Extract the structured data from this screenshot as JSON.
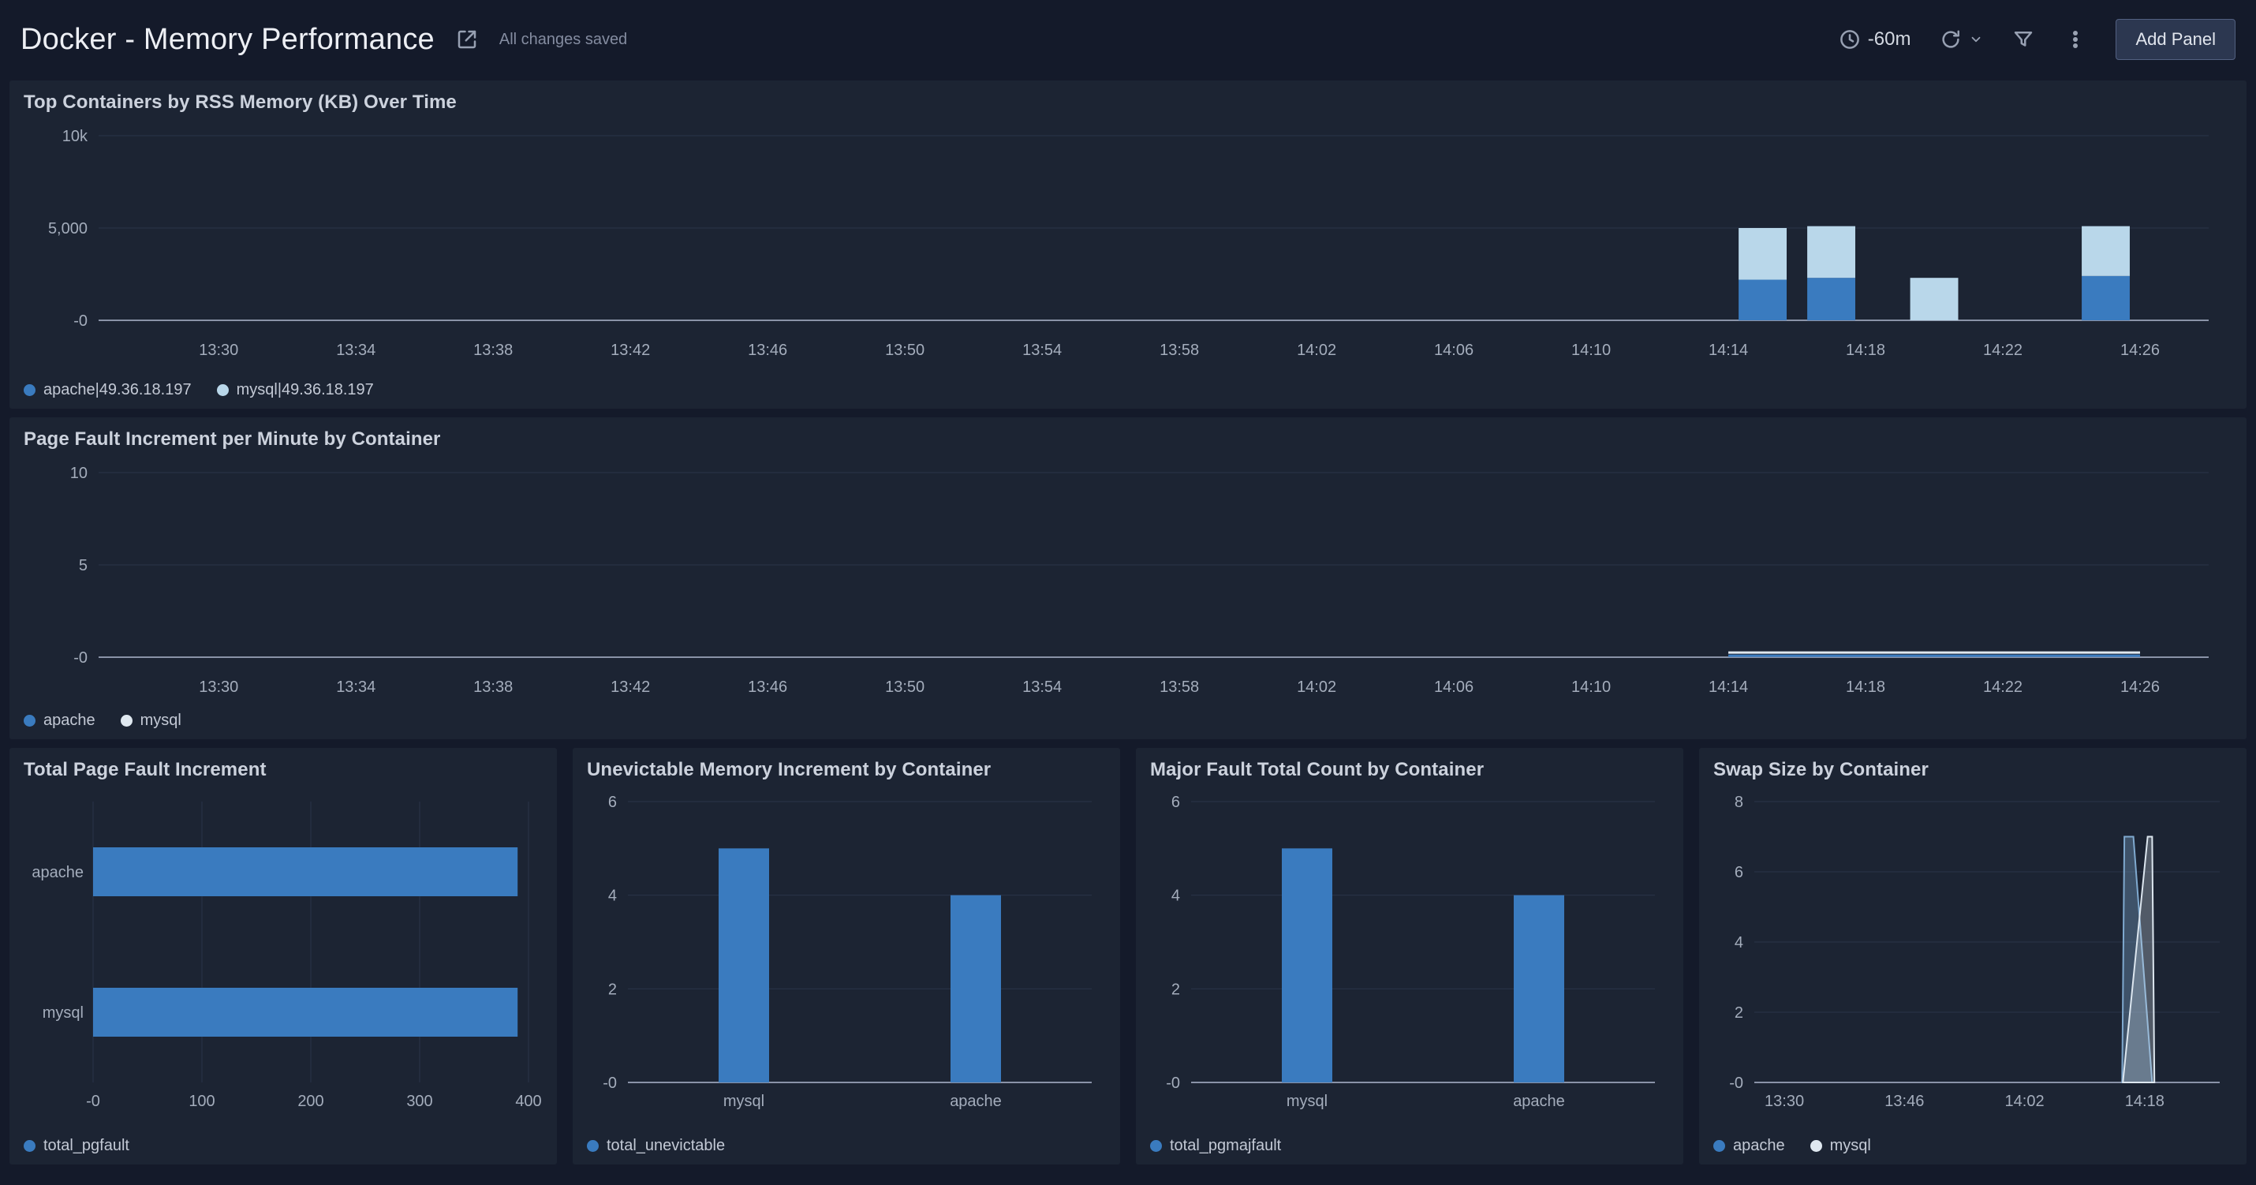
{
  "header": {
    "title": "Docker - Memory Performance",
    "save_status": "All changes saved",
    "time_range": "-60m",
    "add_panel_label": "Add Panel"
  },
  "panels": {
    "rss": {
      "title": "Top Containers by RSS Memory (KB) Over Time"
    },
    "pagefault": {
      "title": "Page Fault Increment per Minute by Container"
    },
    "total_pgfault": {
      "title": "Total Page Fault Increment"
    },
    "unevictable": {
      "title": "Unevictable Memory Increment by Container"
    },
    "pgmajfault": {
      "title": "Major Fault Total Count by Container"
    },
    "swap": {
      "title": "Swap Size by Container"
    }
  },
  "colors": {
    "page_bg": "#141a2a",
    "panel_bg": "#1c2433",
    "series_dark_blue": "#3a7bbf",
    "series_light_blue": "#b9d7ea",
    "series_white": "#dfe8f0"
  },
  "chart_data": [
    {
      "panel": "rss",
      "type": "bar",
      "stacked": true,
      "x_domain": [
        -3.5,
        58
      ],
      "x_ticks": [
        {
          "m": 0,
          "label": "13:30"
        },
        {
          "m": 4,
          "label": "13:34"
        },
        {
          "m": 8,
          "label": "13:38"
        },
        {
          "m": 12,
          "label": "13:42"
        },
        {
          "m": 16,
          "label": "13:46"
        },
        {
          "m": 20,
          "label": "13:50"
        },
        {
          "m": 24,
          "label": "13:54"
        },
        {
          "m": 28,
          "label": "13:58"
        },
        {
          "m": 32,
          "label": "14:02"
        },
        {
          "m": 36,
          "label": "14:06"
        },
        {
          "m": 40,
          "label": "14:10"
        },
        {
          "m": 44,
          "label": "14:14"
        },
        {
          "m": 48,
          "label": "14:18"
        },
        {
          "m": 52,
          "label": "14:22"
        },
        {
          "m": 56,
          "label": "14:26"
        }
      ],
      "y_domain": [
        0,
        10000
      ],
      "y_ticks": [
        {
          "v": 0,
          "label": "-0"
        },
        {
          "v": 5000,
          "label": "5,000"
        },
        {
          "v": 10000,
          "label": "10k"
        }
      ],
      "bar_x_minutes": [
        45,
        47,
        50,
        55
      ],
      "bar_width_minutes": 1.4,
      "series": [
        {
          "name": "apache|49.36.18.197",
          "color": "#3a7bbf",
          "values": [
            2200,
            2300,
            0,
            2400
          ]
        },
        {
          "name": "mysql|49.36.18.197",
          "color": "#b9d7ea",
          "values": [
            2800,
            2800,
            2300,
            2700
          ]
        }
      ],
      "legend": [
        {
          "label": "apache|49.36.18.197",
          "color": "#3a7bbf"
        },
        {
          "label": "mysql|49.36.18.197",
          "color": "#b9d7ea"
        }
      ]
    },
    {
      "panel": "pagefault",
      "type": "line",
      "x_domain": [
        -3.5,
        58
      ],
      "x_ticks": [
        {
          "m": 0,
          "label": "13:30"
        },
        {
          "m": 4,
          "label": "13:34"
        },
        {
          "m": 8,
          "label": "13:38"
        },
        {
          "m": 12,
          "label": "13:42"
        },
        {
          "m": 16,
          "label": "13:46"
        },
        {
          "m": 20,
          "label": "13:50"
        },
        {
          "m": 24,
          "label": "13:54"
        },
        {
          "m": 28,
          "label": "13:58"
        },
        {
          "m": 32,
          "label": "14:02"
        },
        {
          "m": 36,
          "label": "14:06"
        },
        {
          "m": 40,
          "label": "14:10"
        },
        {
          "m": 44,
          "label": "14:14"
        },
        {
          "m": 48,
          "label": "14:18"
        },
        {
          "m": 52,
          "label": "14:22"
        },
        {
          "m": 56,
          "label": "14:26"
        }
      ],
      "y_domain": [
        0,
        10
      ],
      "y_ticks": [
        {
          "v": 0,
          "label": "-0"
        },
        {
          "v": 5,
          "label": "5"
        },
        {
          "v": 10,
          "label": "10"
        }
      ],
      "series": [
        {
          "name": "apache",
          "color": "#3a7bbf",
          "points": [
            [
              44,
              0.08
            ],
            [
              56,
              0.08
            ]
          ]
        },
        {
          "name": "mysql",
          "color": "#dfe8f0",
          "points": [
            [
              44,
              0.25
            ],
            [
              56,
              0.25
            ]
          ]
        }
      ],
      "legend": [
        {
          "label": "apache",
          "color": "#3a7bbf"
        },
        {
          "label": "mysql",
          "color": "#dfe8f0"
        }
      ]
    },
    {
      "panel": "total_pgfault",
      "type": "bar",
      "orientation": "horizontal",
      "categories": [
        "apache",
        "mysql"
      ],
      "values": [
        390,
        390
      ],
      "color": "#3a7bbf",
      "x_domain": [
        0,
        400
      ],
      "x_ticks": [
        {
          "v": 0,
          "label": "-0"
        },
        {
          "v": 100,
          "label": "100"
        },
        {
          "v": 200,
          "label": "200"
        },
        {
          "v": 300,
          "label": "300"
        },
        {
          "v": 400,
          "label": "400"
        }
      ],
      "legend": [
        {
          "label": "total_pgfault",
          "color": "#3a7bbf"
        }
      ]
    },
    {
      "panel": "unevictable",
      "type": "bar",
      "orientation": "vertical",
      "categories": [
        "mysql",
        "apache"
      ],
      "values": [
        5,
        4
      ],
      "color": "#3a7bbf",
      "y_domain": [
        0,
        6
      ],
      "y_ticks": [
        {
          "v": 0,
          "label": "-0"
        },
        {
          "v": 2,
          "label": "2"
        },
        {
          "v": 4,
          "label": "4"
        },
        {
          "v": 6,
          "label": "6"
        }
      ],
      "legend": [
        {
          "label": "total_unevictable",
          "color": "#3a7bbf"
        }
      ]
    },
    {
      "panel": "pgmajfault",
      "type": "bar",
      "orientation": "vertical",
      "categories": [
        "mysql",
        "apache"
      ],
      "values": [
        5,
        4
      ],
      "color": "#3a7bbf",
      "y_domain": [
        0,
        6
      ],
      "y_ticks": [
        {
          "v": 0,
          "label": "-0"
        },
        {
          "v": 2,
          "label": "2"
        },
        {
          "v": 4,
          "label": "4"
        },
        {
          "v": 6,
          "label": "6"
        }
      ],
      "legend": [
        {
          "label": "total_pgmajfault",
          "color": "#3a7bbf"
        }
      ]
    },
    {
      "panel": "swap",
      "type": "area",
      "x_domain": [
        -4,
        58
      ],
      "x_ticks": [
        {
          "m": 0,
          "label": "13:30"
        },
        {
          "m": 16,
          "label": "13:46"
        },
        {
          "m": 32,
          "label": "14:02"
        },
        {
          "m": 48,
          "label": "14:18"
        }
      ],
      "y_domain": [
        0,
        8
      ],
      "y_ticks": [
        {
          "v": 0,
          "label": "-0"
        },
        {
          "v": 2,
          "label": "2"
        },
        {
          "v": 4,
          "label": "4"
        },
        {
          "v": 6,
          "label": "6"
        },
        {
          "v": 8,
          "label": "8"
        }
      ],
      "series": [
        {
          "name": "apache",
          "color": "#7fa9cf",
          "fill_opacity": 0.35,
          "points": [
            [
              45,
              0
            ],
            [
              45.3,
              7
            ],
            [
              46.5,
              7
            ],
            [
              49,
              0
            ]
          ]
        },
        {
          "name": "mysql",
          "color": "#dce6ef",
          "fill_opacity": 0.28,
          "points": [
            [
              45.1,
              0
            ],
            [
              48.4,
              7
            ],
            [
              49,
              7
            ],
            [
              49.3,
              0
            ]
          ]
        }
      ],
      "legend": [
        {
          "label": "apache",
          "color": "#3a7bbf"
        },
        {
          "label": "mysql",
          "color": "#dfe8f0"
        }
      ]
    }
  ]
}
